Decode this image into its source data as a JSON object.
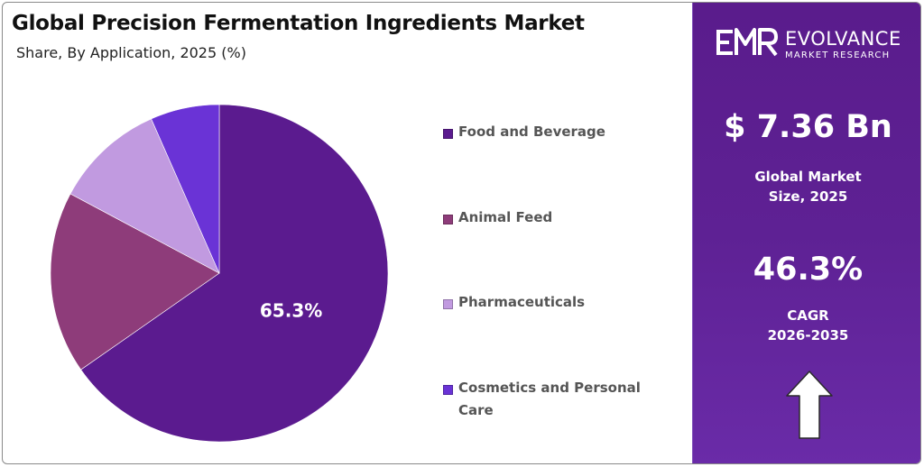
{
  "header": {
    "title": "Global Precision Fermentation Ingredients Market",
    "subtitle": "Share, By Application, 2025 (%)"
  },
  "chart_data": {
    "type": "pie",
    "title": "Global Precision Fermentation Ingredients Market",
    "subtitle": "Share, By Application, 2025 (%)",
    "categories": [
      "Food and Beverage",
      "Animal Feed",
      "Pharmaceuticals",
      "Cosmetics and Personal Care"
    ],
    "values": [
      65.3,
      17.5,
      10.6,
      6.6
    ],
    "colors": [
      "#5b1b8f",
      "#8e3c7a",
      "#c19ae0",
      "#6a33d6"
    ],
    "data_labels": [
      "65.3%",
      "",
      "",
      ""
    ],
    "legend_position": "right"
  },
  "legend": {
    "items": [
      {
        "label_line1": "Food and Beverage",
        "label_line2": "",
        "color": "#5b1b8f"
      },
      {
        "label_line1": "Animal Feed",
        "label_line2": "",
        "color": "#8e3c7a"
      },
      {
        "label_line1": "Pharmaceuticals",
        "label_line2": "",
        "color": "#c19ae0"
      },
      {
        "label_line1": "Cosmetics and Personal",
        "label_line2": "Care",
        "color": "#6a33d6"
      }
    ]
  },
  "sidebar": {
    "brand_logo_text": "EMR",
    "brand_name": "EVOLVANCE",
    "brand_tagline": "MARKET RESEARCH",
    "market_size_value": "$ 7.36 Bn",
    "market_size_label_line1": "Global Market",
    "market_size_label_line2": "Size, 2025",
    "cagr_value": "46.3%",
    "cagr_label_line1": "CAGR",
    "cagr_label_line2": "2026-2035",
    "arrow_icon": "up-arrow-icon",
    "background_color": "#5e2194"
  }
}
